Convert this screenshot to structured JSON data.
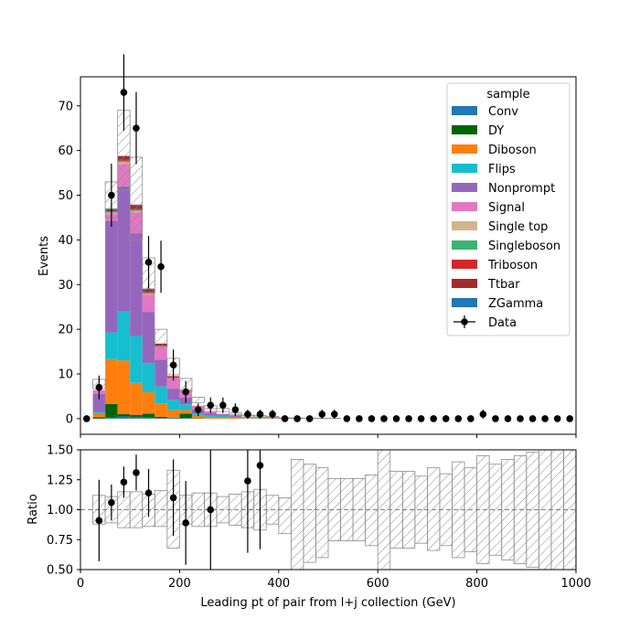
{
  "chart_data": {
    "type": "bar",
    "stacked": true,
    "bin_edges": [
      0,
      25,
      50,
      75,
      100,
      125,
      150,
      175,
      200,
      225,
      250,
      275,
      300,
      325,
      350,
      375,
      400,
      425,
      450,
      475,
      500,
      525,
      550,
      575,
      600,
      625,
      650,
      675,
      700,
      725,
      750,
      775,
      800,
      825,
      850,
      875,
      900,
      925,
      950,
      975,
      1000
    ],
    "xlabel": "Leading pt of pair from l+j collection (GeV)",
    "ylabel": "Events",
    "ratio_ylabel": "Ratio",
    "xlim": [
      0,
      1000
    ],
    "ylim": [
      -3.5,
      76.5
    ],
    "ratio_ylim": [
      0.5,
      1.5
    ],
    "x_ticks": [
      0,
      200,
      400,
      600,
      800,
      1000
    ],
    "y_ticks": [
      0,
      10,
      20,
      30,
      40,
      50,
      60,
      70
    ],
    "ratio_y_ticks": [
      "0.50",
      "0.75",
      "1.00",
      "1.25",
      "1.50"
    ],
    "legend": {
      "title": "sample",
      "placement": "upper right"
    },
    "series": [
      {
        "name": "Conv",
        "color": "#1f77b4",
        "values": [
          0,
          0,
          0.3,
          0.5,
          0.4,
          0.3,
          0.1,
          0.1,
          0.1,
          0,
          0,
          0,
          0,
          0,
          0,
          0,
          0,
          0,
          0,
          0,
          0,
          0,
          0,
          0,
          0,
          0,
          0,
          0,
          0,
          0,
          0,
          0,
          0,
          0,
          0,
          0,
          0,
          0,
          0,
          0
        ]
      },
      {
        "name": "DY",
        "color": "#006400",
        "values": [
          0,
          0.3,
          3.0,
          0.5,
          0.4,
          0.8,
          0.3,
          0.1,
          1.0,
          0.1,
          0,
          0,
          0,
          0,
          0,
          0,
          0,
          0,
          0,
          0,
          0,
          0,
          0,
          0,
          0,
          0,
          0,
          0,
          0,
          0,
          0,
          0,
          0,
          0,
          0,
          0,
          0,
          0,
          0,
          0
        ]
      },
      {
        "name": "Diboson",
        "color": "#ff7f0e",
        "values": [
          0,
          0.9,
          10.0,
          12.0,
          7.2,
          4.8,
          3.0,
          1.7,
          0.8,
          0.6,
          0.4,
          0.3,
          0.2,
          0.1,
          0.1,
          0.1,
          0,
          0,
          0,
          0,
          0,
          0,
          0,
          0,
          0,
          0,
          0,
          0,
          0,
          0,
          0,
          0,
          0,
          0,
          0,
          0,
          0,
          0,
          0,
          0
        ]
      },
      {
        "name": "Flips",
        "color": "#17becf",
        "values": [
          0,
          0.3,
          6.0,
          11.0,
          10.5,
          6.5,
          3.8,
          2.3,
          1.3,
          0.5,
          0.3,
          0.3,
          0.2,
          0.1,
          0.1,
          0,
          0,
          0,
          0,
          0,
          0,
          0,
          0,
          0,
          0,
          0,
          0,
          0,
          0,
          0,
          0,
          0,
          0,
          0,
          0,
          0,
          0,
          0,
          0,
          0
        ]
      },
      {
        "name": "Nonprompt",
        "color": "#9467bd",
        "values": [
          0,
          4.0,
          25.0,
          28.0,
          23.0,
          11.5,
          6.0,
          2.5,
          1.5,
          0.9,
          0.5,
          0.3,
          0.2,
          0.1,
          0.1,
          0.1,
          0,
          0,
          0,
          0,
          0,
          0,
          0,
          0,
          0,
          0,
          0,
          0,
          0,
          0,
          0,
          0,
          0,
          0,
          0,
          0,
          0,
          0,
          0,
          0
        ]
      },
      {
        "name": "Signal",
        "color": "#e377c2",
        "values": [
          0,
          0.9,
          1.5,
          5.0,
          4.7,
          3.8,
          2.8,
          2.3,
          1.6,
          0.8,
          0.5,
          0.2,
          0.2,
          0.1,
          0.1,
          0,
          0,
          0,
          0,
          0,
          0,
          0,
          0,
          0,
          0,
          0,
          0,
          0,
          0,
          0,
          0,
          0,
          0,
          0,
          0,
          0,
          0,
          0,
          0,
          0
        ]
      },
      {
        "name": "Single top",
        "color": "#d2b48c",
        "values": [
          0,
          0,
          0.3,
          0.4,
          0.3,
          0.3,
          0.1,
          0.1,
          0,
          0,
          0,
          0,
          0,
          0,
          0,
          0,
          0,
          0,
          0,
          0,
          0,
          0,
          0,
          0,
          0,
          0,
          0,
          0,
          0,
          0,
          0,
          0,
          0,
          0,
          0,
          0,
          0,
          0,
          0,
          0
        ]
      },
      {
        "name": "Singleboson",
        "color": "#3cb371",
        "values": [
          0,
          0,
          0.2,
          0.3,
          0.2,
          0.2,
          0.1,
          0,
          0,
          0,
          0,
          0,
          0,
          0,
          0,
          0,
          0,
          0,
          0,
          0,
          0,
          0,
          0,
          0,
          0,
          0,
          0,
          0,
          0,
          0,
          0,
          0,
          0,
          0,
          0,
          0,
          0,
          0,
          0,
          0
        ]
      },
      {
        "name": "Triboson",
        "color": "#d62728",
        "values": [
          0,
          0,
          0.1,
          0.3,
          0.2,
          0.2,
          0.1,
          0.1,
          0,
          0,
          0,
          0,
          0,
          0,
          0,
          0,
          0,
          0,
          0,
          0,
          0,
          0,
          0,
          0,
          0,
          0,
          0,
          0,
          0,
          0,
          0,
          0,
          0,
          0,
          0,
          0,
          0,
          0,
          0,
          0
        ]
      },
      {
        "name": "Ttbar",
        "color": "#a52a2a",
        "values": [
          0,
          0,
          0.4,
          0.7,
          0.9,
          0.6,
          0.5,
          0.3,
          0.1,
          0,
          0,
          0,
          0,
          0,
          0,
          0,
          0,
          0,
          0,
          0,
          0,
          0,
          0,
          0,
          0,
          0,
          0,
          0,
          0,
          0,
          0,
          0,
          0,
          0,
          0,
          0,
          0,
          0,
          0,
          0
        ]
      },
      {
        "name": "ZGamma",
        "color": "#1f77b4",
        "values": [
          0,
          0,
          0.2,
          0.1,
          0.1,
          0.1,
          0,
          0,
          0,
          0,
          0,
          0,
          0,
          0,
          0,
          0,
          0,
          0,
          0,
          0,
          0,
          0,
          0,
          0,
          0,
          0,
          0,
          0,
          0,
          0,
          0,
          0,
          0,
          0,
          0,
          0,
          0,
          0,
          0,
          0
        ]
      }
    ],
    "uncertainty_band": {
      "up": [
        0,
        8.8,
        53,
        69,
        58.5,
        36,
        20,
        13.5,
        9,
        4.8,
        2.9,
        2.3,
        1.3,
        0.8,
        0.7,
        0.5,
        0.2,
        0.15,
        0.1,
        0.1,
        0.1,
        0.05,
        0.05,
        0.05,
        0.05,
        0.05,
        0.05,
        0.05,
        0.05,
        0.05,
        0.05,
        0.05,
        0.05,
        0.05,
        0.05,
        0.05,
        0.05,
        0.05,
        0.05,
        0.05
      ],
      "down": [
        0,
        6.7,
        45,
        51,
        40,
        28,
        16,
        9.8,
        6,
        3.6,
        2.2,
        1.6,
        0.9,
        0.6,
        0.4,
        0.3,
        0.05,
        0.05,
        0.05,
        0.05,
        0.05,
        0.05,
        0.05,
        0.05,
        0.05,
        0.05,
        0.05,
        0.05,
        0.05,
        0.05,
        0.05,
        0.05,
        0.05,
        0.05,
        0.05,
        0.05,
        0.05,
        0.05,
        0.05,
        0.05
      ]
    },
    "data": {
      "name": "Data",
      "x": [
        12.5,
        37.5,
        62.5,
        87.5,
        112.5,
        137.5,
        162.5,
        187.5,
        212.5,
        237.5,
        262.5,
        287.5,
        312.5,
        337.5,
        362.5,
        387.5,
        412.5,
        437.5,
        462.5,
        487.5,
        512.5,
        537.5,
        562.5,
        587.5,
        612.5,
        637.5,
        662.5,
        687.5,
        712.5,
        737.5,
        762.5,
        787.5,
        812.5,
        837.5,
        862.5,
        887.5,
        912.5,
        937.5,
        962.5,
        987.5
      ],
      "y": [
        0,
        7,
        50,
        73,
        65,
        35,
        34,
        12,
        6,
        2,
        3,
        3,
        2,
        1,
        1,
        1,
        0,
        0,
        0,
        1,
        1,
        0,
        0,
        0,
        0,
        0,
        0,
        0,
        0,
        0,
        0,
        0,
        1,
        0,
        0,
        0,
        0,
        0,
        0,
        0
      ]
    },
    "ratio": {
      "x": [
        37.5,
        62.5,
        87.5,
        112.5,
        137.5,
        187.5,
        212.5,
        262.5,
        337.5,
        362.5
      ],
      "y": [
        0.91,
        1.06,
        1.23,
        1.31,
        1.14,
        1.1,
        0.89,
        1.0,
        1.24,
        1.37
      ],
      "err_lo": [
        0.34,
        0.15,
        0.13,
        0.15,
        0.2,
        0.32,
        0.35,
        0.55,
        0.6,
        0.7
      ],
      "err_hi": [
        0.34,
        0.15,
        0.13,
        0.15,
        0.2,
        0.32,
        0.35,
        0.55,
        0.6,
        0.7
      ],
      "band_up": [
        1.0,
        1.12,
        1.11,
        1.15,
        1.15,
        1.13,
        1.16,
        1.33,
        1.12,
        1.14,
        1.14,
        1.11,
        1.13,
        1.15,
        1.17,
        1.12,
        1.1,
        1.42,
        1.38,
        1.35,
        1.26,
        1.26,
        1.26,
        1.29,
        1.6,
        1.32,
        1.32,
        1.28,
        1.35,
        1.3,
        1.4,
        1.35,
        1.45,
        1.38,
        1.42,
        1.45,
        1.48,
        1.6,
        1.52,
        1.6
      ],
      "band_down": [
        1.0,
        0.88,
        0.89,
        0.85,
        0.85,
        0.86,
        0.86,
        0.68,
        0.88,
        0.86,
        0.86,
        0.89,
        0.87,
        0.85,
        0.83,
        0.88,
        0.8,
        0.5,
        0.56,
        0.6,
        0.74,
        0.74,
        0.74,
        0.7,
        0.5,
        0.68,
        0.68,
        0.72,
        0.66,
        0.7,
        0.6,
        0.65,
        0.55,
        0.62,
        0.58,
        0.55,
        0.52,
        0.5,
        0.48,
        0.4
      ]
    }
  }
}
